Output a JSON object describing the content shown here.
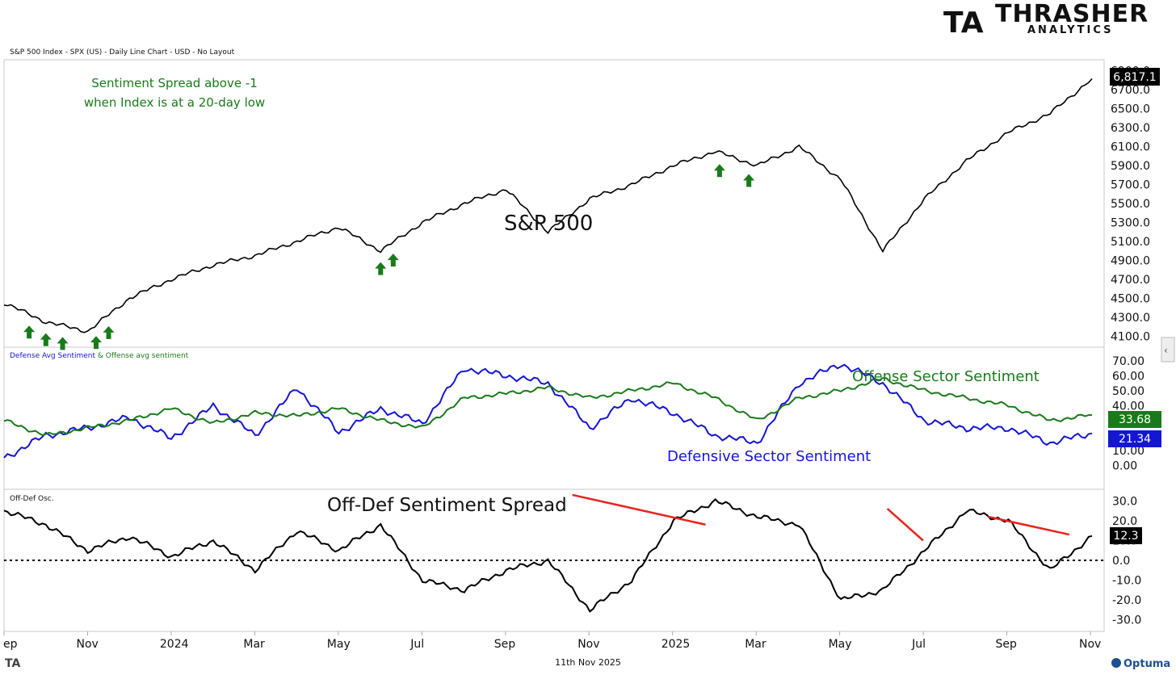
{
  "header": {
    "chart_title": "S&P 500 Index - SPX (US) - Daily Line Chart - USD - No Layout",
    "brand_main": "THRASHER",
    "brand_sub": "ANALYTICS",
    "brand_mark": "TA"
  },
  "footer": {
    "date": "11th Nov 2025",
    "vendor": "Optuma",
    "mark": "TA"
  },
  "colors": {
    "price": "#000000",
    "offense": "#1a7a1a",
    "defense": "#1515d4",
    "trendline": "#e8231e",
    "arrow": "#1a7a1a"
  },
  "chart_data": [
    {
      "type": "line",
      "panel": "price",
      "ylim": [
        4000,
        7000
      ],
      "yticks": [
        "6900.0",
        "6700.0",
        "6500.0",
        "6300.0",
        "6100.0",
        "5900.0",
        "5700.0",
        "5500.0",
        "5300.0",
        "5100.0",
        "4900.0",
        "4700.0",
        "4500.0",
        "4300.0",
        "4100.0"
      ],
      "ytick_values": [
        6900,
        6700,
        6500,
        6300,
        6100,
        5900,
        5700,
        5500,
        5300,
        5100,
        4900,
        4700,
        4500,
        4300,
        4100
      ],
      "last_value_label": "6,817.1",
      "annotation": [
        "Sentiment Spread above -1",
        "when Index is at a 20-day low"
      ],
      "series_label": "S&P 500",
      "x": [
        0,
        1,
        2,
        3,
        4,
        5,
        6,
        7,
        8,
        9,
        10,
        11,
        12,
        13,
        14,
        15,
        16,
        17,
        18,
        19,
        20,
        21,
        22,
        23,
        24,
        25,
        26
      ],
      "values": [
        4450,
        4250,
        4150,
        4500,
        4700,
        4850,
        4950,
        5100,
        5250,
        5000,
        5300,
        5500,
        5650,
        5200,
        5550,
        5700,
        5900,
        6050,
        5900,
        6100,
        5750,
        5000,
        5550,
        5950,
        6250,
        6450,
        6817
      ],
      "signal_arrows_x": [
        0.6,
        1.0,
        1.4,
        2.2,
        2.5,
        9.0,
        9.3,
        17.1,
        17.8
      ]
    },
    {
      "type": "line",
      "panel": "sentiment",
      "panel_title_defense": "Defense Avg Sentiment",
      "panel_title_amp": " & ",
      "panel_title_offense": "Offense avg sentiment",
      "ylim": [
        -15,
        78
      ],
      "yticks": [
        "70.00",
        "60.00",
        "50.00",
        "40.00",
        "20.00",
        "10.00",
        "0.00"
      ],
      "ytick_values": [
        70,
        60,
        50,
        40,
        20,
        10,
        0
      ],
      "series": [
        {
          "name": "Offense Sector Sentiment",
          "last_value_label": "33.68",
          "values": [
            30,
            20,
            25,
            30,
            38,
            28,
            35,
            33,
            38,
            30,
            25,
            45,
            48,
            52,
            45,
            50,
            55,
            45,
            30,
            45,
            50,
            58,
            50,
            45,
            40,
            30,
            33.68
          ]
        },
        {
          "name": "Defensive Sector Sentiment",
          "last_value_label": "21.34",
          "values": [
            5,
            20,
            25,
            32,
            18,
            40,
            20,
            52,
            22,
            38,
            28,
            65,
            60,
            55,
            25,
            45,
            35,
            20,
            15,
            55,
            68,
            55,
            30,
            25,
            25,
            15,
            21.34
          ]
        }
      ]
    },
    {
      "type": "line",
      "panel": "oscillator",
      "panel_title": "Off-Def Osc.",
      "series_label": "Off-Def Sentiment Spread",
      "ylim": [
        -35,
        35
      ],
      "yticks": [
        "30.0",
        "20.0",
        "10.0",
        "0.0",
        "-10.0",
        "-20.0",
        "-30.0"
      ],
      "ytick_values": [
        30,
        20,
        10,
        0,
        -10,
        -20,
        -30
      ],
      "last_value_label": "12.3",
      "values": [
        25,
        18,
        5,
        12,
        2,
        10,
        -5,
        15,
        5,
        18,
        -10,
        -15,
        -5,
        0,
        -25,
        -10,
        20,
        30,
        22,
        18,
        -20,
        -15,
        5,
        25,
        20,
        -5,
        12.3
      ],
      "trendlines": [
        [
          [
            17.5,
            33
          ],
          [
            21.6,
            18
          ]
        ],
        [
          [
            27.2,
            26
          ],
          [
            28.3,
            10
          ]
        ],
        [
          [
            30.3,
            22
          ],
          [
            32.8,
            13
          ]
        ]
      ],
      "zero_line": 0
    }
  ],
  "x_axis": {
    "labels": [
      "ep",
      "Nov",
      "2024",
      "Mar",
      "May",
      "Jul",
      "Sep",
      "Nov",
      "2025",
      "Mar",
      "May",
      "Jul",
      "Sep",
      "Nov"
    ]
  }
}
